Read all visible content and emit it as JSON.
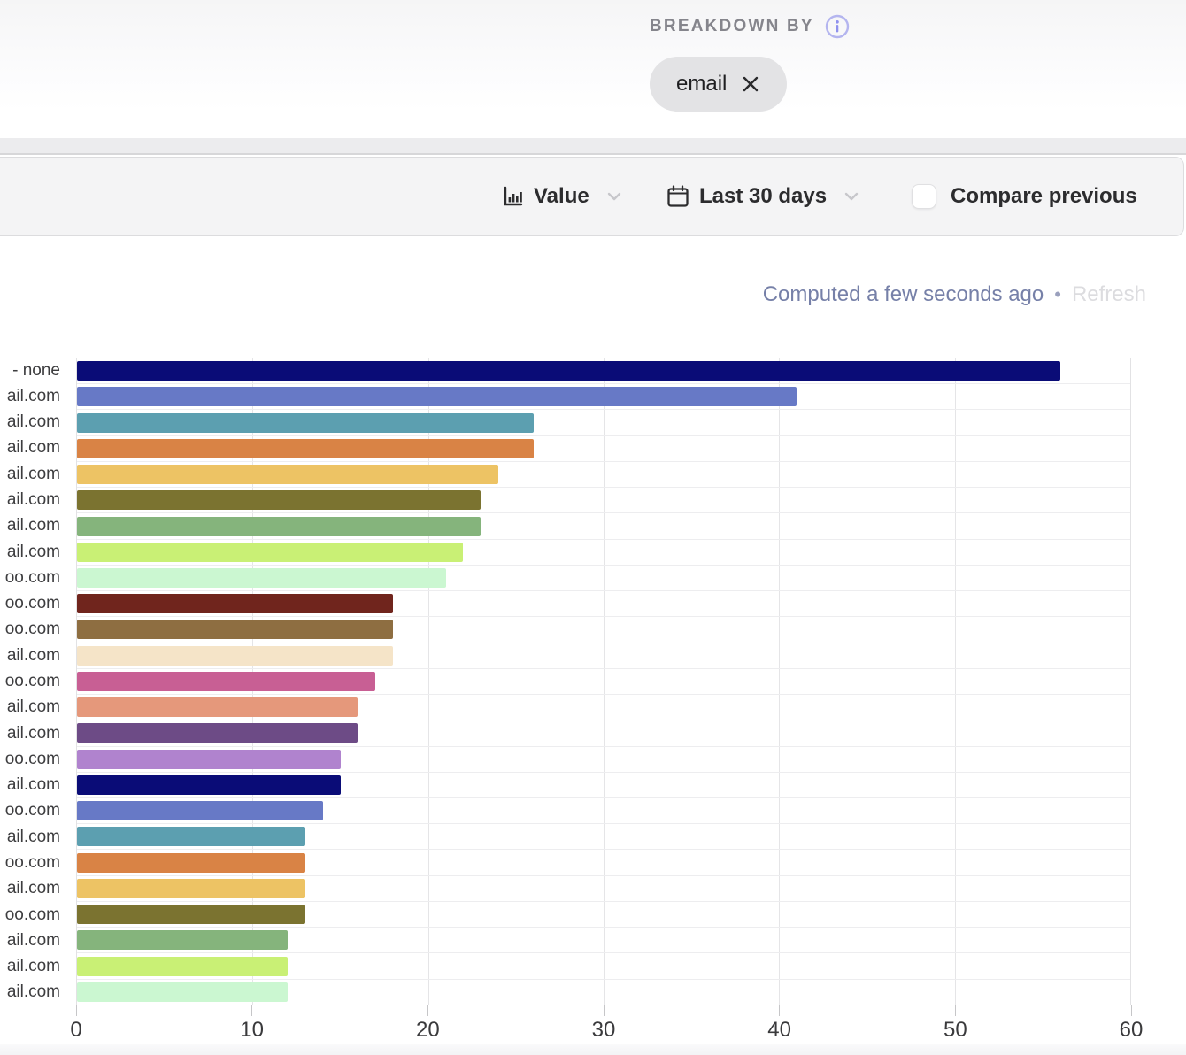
{
  "header": {
    "breakdown_label": "BREAKDOWN BY",
    "chip": {
      "label": "email"
    }
  },
  "toolbar": {
    "value_control": {
      "label": "Value"
    },
    "date_control": {
      "label": "Last 30 days"
    },
    "compare_checkbox": {
      "label": "Compare previous",
      "checked": false
    }
  },
  "status": {
    "computed_text": "Computed a few seconds ago",
    "separator": "•",
    "refresh_label": "Refresh"
  },
  "colors": {
    "chip_bg": "#e3e3e5",
    "toolbar_bg": "#f4f4f5",
    "info_icon_accent": "#8f91ee",
    "computed_text": "#7680a8"
  },
  "chart_data": {
    "type": "bar",
    "orientation": "horizontal",
    "title": "",
    "xlabel": "",
    "ylabel": "",
    "xlim": [
      0,
      60
    ],
    "x_ticks": [
      0,
      10,
      20,
      30,
      40,
      50,
      60
    ],
    "grid": true,
    "categories": [
      "- none",
      "ail.com",
      "ail.com",
      "ail.com",
      "ail.com",
      "ail.com",
      "ail.com",
      "ail.com",
      "oo.com",
      "oo.com",
      "oo.com",
      "ail.com",
      "oo.com",
      "ail.com",
      "ail.com",
      "oo.com",
      "ail.com",
      "oo.com",
      "ail.com",
      "oo.com",
      "ail.com",
      "oo.com",
      "ail.com",
      "ail.com",
      "ail.com"
    ],
    "values": [
      56,
      41,
      26,
      26,
      24,
      23,
      23,
      22,
      21,
      18,
      18,
      18,
      17,
      16,
      16,
      15,
      15,
      14,
      13,
      13,
      13,
      13,
      12,
      12,
      12
    ],
    "bar_colors": [
      "#0a0c77",
      "#6779c6",
      "#5c9fb0",
      "#d98345",
      "#edc364",
      "#7b7330",
      "#85b47c",
      "#c9f075",
      "#cbf7d1",
      "#70251d",
      "#8e6e41",
      "#f5e4c8",
      "#c85f94",
      "#e5987b",
      "#6d4b86",
      "#b083ce",
      "#0a0c77",
      "#6779c6",
      "#5c9fb0",
      "#d98345",
      "#edc364",
      "#7b7330",
      "#85b47c",
      "#c9f075",
      "#cbf7d1"
    ]
  }
}
